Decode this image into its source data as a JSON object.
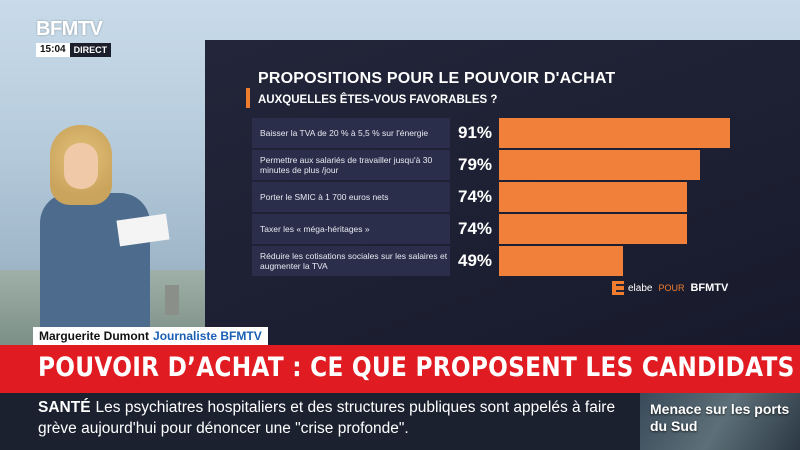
{
  "channel": {
    "logo": "BFMTV",
    "time": "15:04",
    "live_label": "DIRECT"
  },
  "lower_third": {
    "name": "Marguerite Dumont",
    "role": "Journaliste BFMTV"
  },
  "headline": "POUVOIR D’ACHAT : CE QUE PROPOSENT LES CANDIDATS",
  "ticker": {
    "category": "SANTÉ",
    "text": "Les psychiatres hospitaliers et des structures publiques sont appelés à faire grève aujourd'hui pour dénoncer une \"crise profonde\"."
  },
  "teaser": "Menace sur les ports du Sud",
  "credit": {
    "source": "elabe",
    "pour": "POUR",
    "brand": "BFMTV"
  },
  "colors": {
    "bar": "#f0803a",
    "headline_bg": "#e01b22",
    "screen_bg": "#1d2033"
  },
  "chart_data": {
    "type": "bar",
    "title": "PROPOSITIONS POUR LE POUVOIR D'ACHAT",
    "subtitle": "AUXQUELLES ÊTES-VOUS FAVORABLES ?",
    "categories": [
      "Baisser la TVA de 20 % à 5,5 % sur l'énergie",
      "Permettre aux salariés de travailler jusqu'à 30 minutes de plus /jour",
      "Porter le SMIC à 1 700 euros nets",
      "Taxer les « méga-héritages »",
      "Réduire les cotisations sociales sur les salaires et augmenter la TVA"
    ],
    "values": [
      91,
      79,
      74,
      74,
      49
    ],
    "value_labels": [
      "91%",
      "79%",
      "74%",
      "74%",
      "49%"
    ],
    "unit": "%",
    "xlim": [
      0,
      100
    ],
    "orientation": "horizontal"
  }
}
